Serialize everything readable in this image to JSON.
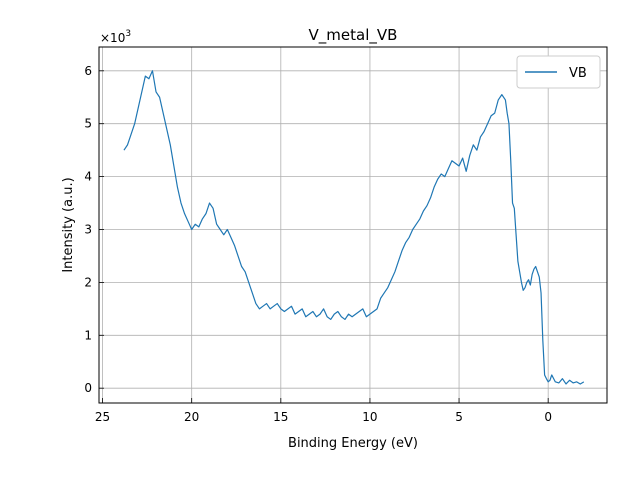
{
  "chart_data": {
    "type": "line",
    "title": "V_metal_VB",
    "xlabel": "Binding Energy (eV)",
    "ylabel": "Intensity (a.u.)",
    "y_multiplier_label": "×10",
    "y_multiplier_exp": "3",
    "xlim": [
      25.2,
      -3.3
    ],
    "ylim": [
      -0.28,
      6.45
    ],
    "x_ticks": [
      25,
      20,
      15,
      10,
      5,
      0
    ],
    "y_ticks": [
      0,
      1,
      2,
      3,
      4,
      5,
      6
    ],
    "x_axis_reversed": true,
    "grid": true,
    "legend_position": "top-right",
    "colors": {
      "series": "#1f77b4",
      "grid": "#b0b0b0"
    },
    "series": [
      {
        "name": "VB",
        "x": [
          23.8,
          23.6,
          23.4,
          23.2,
          23.0,
          22.8,
          22.6,
          22.4,
          22.2,
          22.0,
          21.8,
          21.6,
          21.4,
          21.2,
          21.0,
          20.8,
          20.6,
          20.4,
          20.2,
          20.0,
          19.8,
          19.6,
          19.4,
          19.2,
          19.0,
          18.8,
          18.6,
          18.4,
          18.2,
          18.0,
          17.8,
          17.6,
          17.4,
          17.2,
          17.0,
          16.8,
          16.6,
          16.4,
          16.2,
          16.0,
          15.8,
          15.6,
          15.4,
          15.2,
          15.0,
          14.8,
          14.6,
          14.4,
          14.2,
          14.0,
          13.8,
          13.6,
          13.4,
          13.2,
          13.0,
          12.8,
          12.6,
          12.4,
          12.2,
          12.0,
          11.8,
          11.6,
          11.4,
          11.2,
          11.0,
          10.8,
          10.6,
          10.4,
          10.2,
          10.0,
          9.8,
          9.6,
          9.4,
          9.2,
          9.0,
          8.8,
          8.6,
          8.4,
          8.2,
          8.0,
          7.8,
          7.6,
          7.4,
          7.2,
          7.0,
          6.8,
          6.6,
          6.4,
          6.2,
          6.0,
          5.8,
          5.6,
          5.4,
          5.2,
          5.0,
          4.8,
          4.6,
          4.4,
          4.2,
          4.0,
          3.8,
          3.6,
          3.4,
          3.2,
          3.0,
          2.8,
          2.6,
          2.4,
          2.3,
          2.2,
          2.1,
          2.0,
          1.9,
          1.8,
          1.7,
          1.6,
          1.5,
          1.4,
          1.3,
          1.2,
          1.1,
          1.0,
          0.9,
          0.8,
          0.7,
          0.6,
          0.5,
          0.4,
          0.3,
          0.2,
          0.1,
          0.0,
          -0.1,
          -0.2,
          -0.4,
          -0.6,
          -0.8,
          -1.0,
          -1.2,
          -1.4,
          -1.6,
          -1.8,
          -2.0
        ],
        "values": [
          4.5,
          4.6,
          4.8,
          5.0,
          5.3,
          5.6,
          5.9,
          5.85,
          6.0,
          5.6,
          5.5,
          5.2,
          4.9,
          4.6,
          4.2,
          3.8,
          3.5,
          3.3,
          3.15,
          3.0,
          3.1,
          3.05,
          3.2,
          3.3,
          3.5,
          3.4,
          3.1,
          3.0,
          2.9,
          3.0,
          2.85,
          2.7,
          2.5,
          2.3,
          2.2,
          2.0,
          1.8,
          1.6,
          1.5,
          1.55,
          1.6,
          1.5,
          1.55,
          1.6,
          1.5,
          1.45,
          1.5,
          1.55,
          1.4,
          1.45,
          1.5,
          1.35,
          1.4,
          1.45,
          1.35,
          1.4,
          1.5,
          1.35,
          1.3,
          1.4,
          1.45,
          1.35,
          1.3,
          1.4,
          1.35,
          1.4,
          1.45,
          1.5,
          1.35,
          1.4,
          1.45,
          1.5,
          1.7,
          1.8,
          1.9,
          2.05,
          2.2,
          2.4,
          2.6,
          2.75,
          2.85,
          3.0,
          3.1,
          3.2,
          3.35,
          3.45,
          3.6,
          3.8,
          3.95,
          4.05,
          4.0,
          4.15,
          4.3,
          4.25,
          4.2,
          4.35,
          4.1,
          4.4,
          4.6,
          4.5,
          4.75,
          4.85,
          5.0,
          5.15,
          5.2,
          5.45,
          5.55,
          5.45,
          5.2,
          5.0,
          4.3,
          3.5,
          3.4,
          2.9,
          2.4,
          2.2,
          2.0,
          1.85,
          1.9,
          2.0,
          2.05,
          1.95,
          2.15,
          2.25,
          2.3,
          2.2,
          2.1,
          1.8,
          0.9,
          0.25,
          0.18,
          0.12,
          0.15,
          0.25,
          0.12,
          0.1,
          0.18,
          0.08,
          0.15,
          0.1,
          0.12,
          0.08,
          0.12
        ]
      }
    ]
  }
}
